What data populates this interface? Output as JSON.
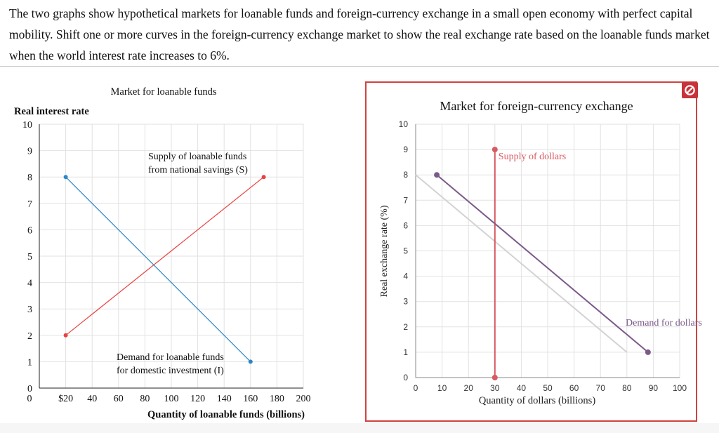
{
  "question": {
    "text": "The two graphs show hypothetical markets for loanable funds and foreign-currency exchange in a small open economy with perfect capital mobility. Shift one or more curves in the foreign-currency exchange market to show the real exchange rate based on the loanable funds market when the world interest rate increases to 6%."
  },
  "colors": {
    "supply_loanable": "#e8423f",
    "demand_loanable": "#2a87c8",
    "supply_dollars": "#d85a62",
    "demand_dollars": "#7b5a8a",
    "original_demand": "#d3d3d3",
    "panel_border": "#d0423f",
    "reset_button": "#c8323a",
    "grid": "#e2e2e2"
  },
  "reset_icon": "no-entry-icon",
  "chart_data": [
    {
      "type": "line",
      "title": "Market for loanable funds",
      "xlabel": "Quantity of loanable funds (billions)",
      "ylabel": "Real interest rate",
      "xlim": [
        0,
        200
      ],
      "ylim": [
        0,
        10
      ],
      "x_ticks": [
        0,
        20,
        40,
        60,
        80,
        100,
        120,
        140,
        160,
        180,
        200
      ],
      "x_tick_labels": [
        "",
        "$20",
        "40",
        "60",
        "80",
        "100",
        "120",
        "140",
        "160",
        "180",
        "200"
      ],
      "y_ticks": [
        0,
        1,
        2,
        3,
        4,
        5,
        6,
        7,
        8,
        9,
        10
      ],
      "y_tick_labels": [
        "0",
        "1",
        "2",
        "3",
        "4",
        "5",
        "6",
        "7",
        "8",
        "9",
        "10"
      ],
      "grid": true,
      "series": [
        {
          "name": "Supply of loanable funds from national savings (S)",
          "label_lines": [
            "Supply of loanable funds",
            "from national savings (S)"
          ],
          "color": "#e8423f",
          "x": [
            20,
            170
          ],
          "y": [
            2,
            8
          ]
        },
        {
          "name": "Demand for loanable funds for domestic investment (I)",
          "label_lines": [
            "Demand for loanable funds",
            "for domestic investment (I)"
          ],
          "color": "#2a87c8",
          "x": [
            20,
            160
          ],
          "y": [
            8,
            1
          ]
        }
      ]
    },
    {
      "type": "line",
      "title": "Market for foreign-currency exchange",
      "xlabel": "Quantity of dollars (billions)",
      "ylabel": "Real exchange rate (%)",
      "xlim": [
        0,
        100
      ],
      "ylim": [
        0,
        10
      ],
      "x_ticks": [
        0,
        10,
        20,
        30,
        40,
        50,
        60,
        70,
        80,
        90,
        100
      ],
      "x_tick_labels": [
        "0",
        "10",
        "20",
        "30",
        "40",
        "50",
        "60",
        "70",
        "80",
        "90",
        "100"
      ],
      "y_ticks": [
        0,
        1,
        2,
        3,
        4,
        5,
        6,
        7,
        8,
        9,
        10
      ],
      "y_tick_labels": [
        "0",
        "1",
        "2",
        "3",
        "4",
        "5",
        "6",
        "7",
        "8",
        "9",
        "10"
      ],
      "grid": true,
      "series": [
        {
          "name": "Original demand for dollars",
          "color": "#d3d3d3",
          "x": [
            0,
            80
          ],
          "y": [
            8,
            1
          ]
        },
        {
          "name": "Supply of dollars",
          "label_lines": [
            "Supply of dollars"
          ],
          "color": "#d85a62",
          "x": [
            30,
            30
          ],
          "y": [
            9,
            0
          ]
        },
        {
          "name": "Demand for dollars",
          "label_lines": [
            "Demand for dollars"
          ],
          "color": "#7b5a8a",
          "x": [
            8,
            88
          ],
          "y": [
            8,
            1
          ]
        }
      ]
    }
  ]
}
